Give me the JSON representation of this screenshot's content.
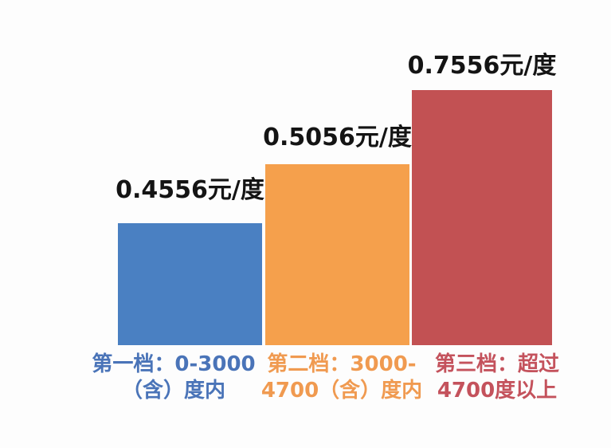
{
  "chart_data": {
    "type": "bar",
    "title": "",
    "xlabel": "",
    "ylabel": "",
    "unit": "元/度",
    "grid": false,
    "legend": null,
    "ylim": [
      0,
      0.8
    ],
    "background_color": "#fdfdfd",
    "value_label_color": "#141414",
    "categories": [
      "第一档：0-3000（含）度内",
      "第二档：3000-4700（含）度内",
      "第三档：超过4700度以上"
    ],
    "values": [
      0.4556,
      0.5056,
      0.7556
    ],
    "bars": [
      {
        "value": 0.4556,
        "value_label": "0.4556元/度",
        "category_line1": "第一档：0-3000",
        "category_line2": "（含）度内",
        "color": "#4a80c2",
        "label_color": "#4a74b8"
      },
      {
        "value": 0.5056,
        "value_label": "0.5056元/度",
        "category_line1": "第二档：3000-",
        "category_line2": "4700（含）度内",
        "color": "#f5a04c",
        "label_color": "#f09a50"
      },
      {
        "value": 0.7556,
        "value_label": "0.7556元/度",
        "category_line1": "第三档：超过",
        "category_line2": "4700度以上",
        "color": "#c25153",
        "label_color": "#c4525c"
      }
    ]
  }
}
